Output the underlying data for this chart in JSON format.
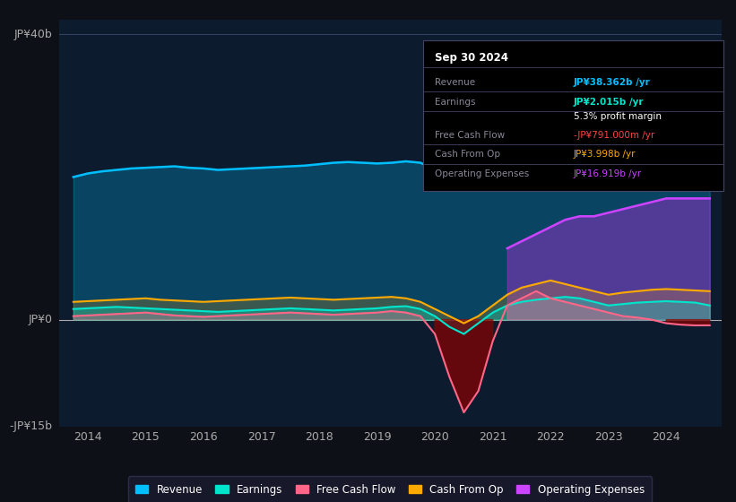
{
  "background_color": "#0d1117",
  "plot_bg_color": "#0d1b2e",
  "ylabel_top": "JP¥40b",
  "ylabel_mid": "JP¥0",
  "ylabel_bot": "-JP¥15b",
  "ylim": [
    -15,
    42
  ],
  "xlim_start": 2013.5,
  "xlim_end": 2024.95,
  "xticks": [
    2014,
    2015,
    2016,
    2017,
    2018,
    2019,
    2020,
    2021,
    2022,
    2023,
    2024
  ],
  "info_box": {
    "title": "Sep 30 2024",
    "rows": [
      {
        "label": "Revenue",
        "value": "JP¥38.362b /yr",
        "value_color": "#00bfff"
      },
      {
        "label": "Earnings",
        "value": "JP¥2.015b /yr",
        "value_color": "#00e5cc"
      },
      {
        "label": "",
        "value": "5.3% profit margin",
        "value_color": "#ffffff"
      },
      {
        "label": "Free Cash Flow",
        "value": "-JP¥791.000m /yr",
        "value_color": "#ff4444"
      },
      {
        "label": "Cash From Op",
        "value": "JP¥3.998b /yr",
        "value_color": "#ffaa00"
      },
      {
        "label": "Operating Expenses",
        "value": "JP¥16.919b /yr",
        "value_color": "#cc44ff"
      }
    ]
  },
  "legend": [
    {
      "label": "Revenue",
      "color": "#00bfff"
    },
    {
      "label": "Earnings",
      "color": "#00e5cc"
    },
    {
      "label": "Free Cash Flow",
      "color": "#ff6688"
    },
    {
      "label": "Cash From Op",
      "color": "#ffaa00"
    },
    {
      "label": "Operating Expenses",
      "color": "#cc44ff"
    }
  ],
  "series": {
    "years": [
      2013.75,
      2014.0,
      2014.25,
      2014.5,
      2014.75,
      2015.0,
      2015.25,
      2015.5,
      2015.75,
      2016.0,
      2016.25,
      2016.5,
      2016.75,
      2017.0,
      2017.25,
      2017.5,
      2017.75,
      2018.0,
      2018.25,
      2018.5,
      2018.75,
      2019.0,
      2019.25,
      2019.5,
      2019.75,
      2020.0,
      2020.25,
      2020.5,
      2020.75,
      2021.0,
      2021.25,
      2021.5,
      2021.75,
      2022.0,
      2022.25,
      2022.5,
      2022.75,
      2023.0,
      2023.25,
      2023.5,
      2023.75,
      2024.0,
      2024.25,
      2024.5,
      2024.75
    ],
    "revenue": [
      20,
      20.5,
      20.8,
      21,
      21.2,
      21.3,
      21.4,
      21.5,
      21.3,
      21.2,
      21.0,
      21.1,
      21.2,
      21.3,
      21.4,
      21.5,
      21.6,
      21.8,
      22,
      22.1,
      22,
      21.9,
      22,
      22.2,
      22,
      21,
      20,
      19.5,
      20,
      22,
      25,
      27,
      28,
      30,
      32,
      32,
      31,
      30,
      31,
      33,
      35,
      36,
      37,
      38,
      38.5
    ],
    "earnings": [
      1.5,
      1.6,
      1.7,
      1.8,
      1.7,
      1.6,
      1.5,
      1.4,
      1.3,
      1.2,
      1.1,
      1.2,
      1.3,
      1.4,
      1.5,
      1.6,
      1.5,
      1.4,
      1.3,
      1.4,
      1.5,
      1.6,
      1.8,
      1.9,
      1.5,
      0.5,
      -1,
      -2,
      -0.5,
      1,
      2,
      2.5,
      2.8,
      3,
      3.2,
      3,
      2.5,
      2,
      2.2,
      2.4,
      2.5,
      2.6,
      2.5,
      2.4,
      2.0
    ],
    "fcf": [
      0.5,
      0.6,
      0.7,
      0.8,
      0.9,
      1.0,
      0.8,
      0.6,
      0.5,
      0.4,
      0.5,
      0.6,
      0.7,
      0.8,
      0.9,
      1.0,
      0.9,
      0.8,
      0.7,
      0.8,
      0.9,
      1.0,
      1.2,
      1.0,
      0.5,
      -2,
      -8,
      -13,
      -10,
      -3,
      2,
      3,
      4,
      3,
      2.5,
      2,
      1.5,
      1,
      0.5,
      0.3,
      0.0,
      -0.5,
      -0.7,
      -0.8,
      -0.79
    ],
    "cashfromop": [
      2.5,
      2.6,
      2.7,
      2.8,
      2.9,
      3.0,
      2.8,
      2.7,
      2.6,
      2.5,
      2.6,
      2.7,
      2.8,
      2.9,
      3.0,
      3.1,
      3.0,
      2.9,
      2.8,
      2.9,
      3.0,
      3.1,
      3.2,
      3.0,
      2.5,
      1.5,
      0.5,
      -0.5,
      0.5,
      2,
      3.5,
      4.5,
      5,
      5.5,
      5,
      4.5,
      4,
      3.5,
      3.8,
      4,
      4.2,
      4.3,
      4.2,
      4.1,
      4.0
    ],
    "opex": [
      0,
      0,
      0,
      0,
      0,
      0,
      0,
      0,
      0,
      0,
      0,
      0,
      0,
      0,
      0,
      0,
      0,
      0,
      0,
      0,
      0,
      0,
      0,
      0,
      0,
      0,
      0,
      0,
      0,
      0,
      10,
      11,
      12,
      13,
      14,
      14.5,
      14.5,
      15,
      15.5,
      16,
      16.5,
      17,
      17,
      17,
      17
    ]
  }
}
